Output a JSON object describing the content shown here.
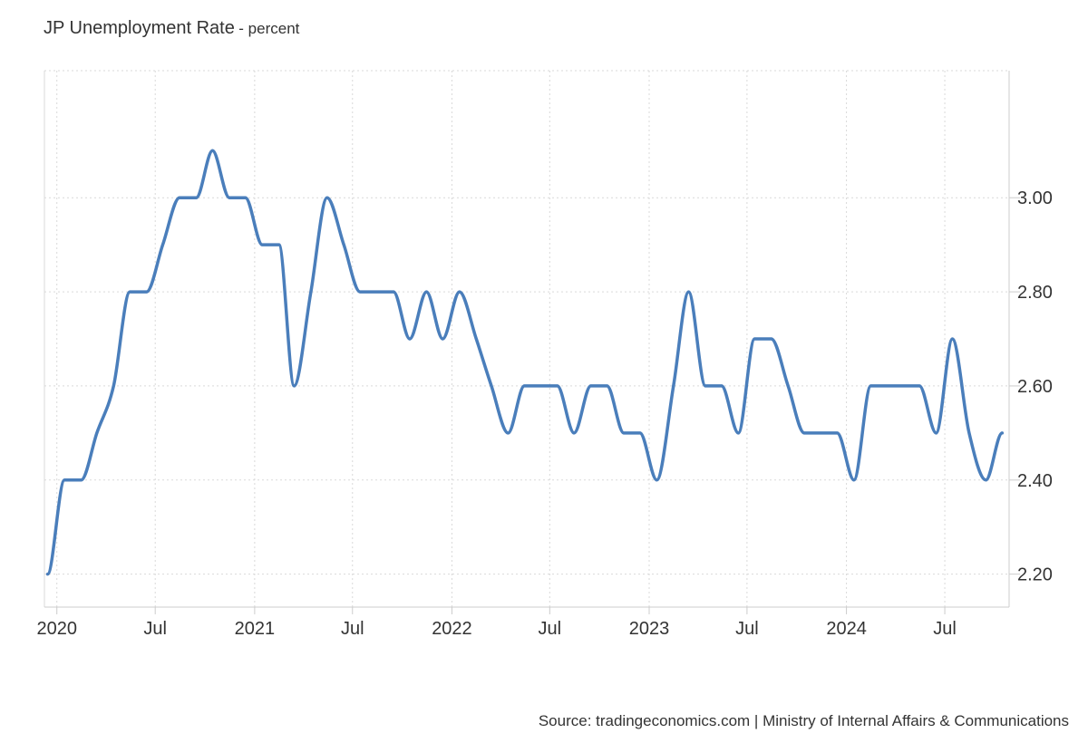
{
  "chart_data": {
    "type": "line",
    "title": "JP Unemployment Rate",
    "subtitle": "- percent",
    "xlabel": "",
    "ylabel": "",
    "ylim": [
      2.13,
      3.27
    ],
    "y_ticks": [
      2.2,
      2.4,
      2.6,
      2.8,
      3.0
    ],
    "y_tick_labels": [
      "2.20",
      "2.40",
      "2.60",
      "2.80",
      "3.00"
    ],
    "x_range": [
      "2019-12-09",
      "2024-10-28"
    ],
    "x_ticks": [
      {
        "date": "2020-01-01",
        "label": "2020"
      },
      {
        "date": "2020-07-01",
        "label": "Jul"
      },
      {
        "date": "2021-01-01",
        "label": "2021"
      },
      {
        "date": "2021-07-01",
        "label": "Jul"
      },
      {
        "date": "2022-01-01",
        "label": "2022"
      },
      {
        "date": "2022-07-01",
        "label": "Jul"
      },
      {
        "date": "2023-01-01",
        "label": "2023"
      },
      {
        "date": "2023-07-01",
        "label": "Jul"
      },
      {
        "date": "2024-01-01",
        "label": "2024"
      },
      {
        "date": "2024-07-01",
        "label": "Jul"
      }
    ],
    "grid": true,
    "color": "#4a7ebb",
    "series": [
      {
        "name": "",
        "x": [
          "2019-12-15",
          "2020-01-15",
          "2020-02-15",
          "2020-03-15",
          "2020-04-15",
          "2020-05-15",
          "2020-06-15",
          "2020-07-15",
          "2020-08-15",
          "2020-09-15",
          "2020-10-15",
          "2020-11-15",
          "2020-12-15",
          "2021-01-15",
          "2021-02-15",
          "2021-03-15",
          "2021-04-15",
          "2021-05-15",
          "2021-06-15",
          "2021-07-15",
          "2021-08-15",
          "2021-09-15",
          "2021-10-15",
          "2021-11-15",
          "2021-12-15",
          "2022-01-15",
          "2022-02-15",
          "2022-03-15",
          "2022-04-15",
          "2022-05-15",
          "2022-06-15",
          "2022-07-15",
          "2022-08-15",
          "2022-09-15",
          "2022-10-15",
          "2022-11-15",
          "2022-12-15",
          "2023-01-15",
          "2023-02-15",
          "2023-03-15",
          "2023-04-15",
          "2023-05-15",
          "2023-06-15",
          "2023-07-15",
          "2023-08-15",
          "2023-09-15",
          "2023-10-15",
          "2023-11-15",
          "2023-12-15",
          "2024-01-15",
          "2024-02-15",
          "2024-03-15",
          "2024-04-15",
          "2024-05-15",
          "2024-06-15",
          "2024-07-15",
          "2024-08-15",
          "2024-09-15",
          "2024-10-15"
        ],
        "values": [
          2.2,
          2.4,
          2.4,
          2.5,
          2.6,
          2.8,
          2.8,
          2.9,
          3.0,
          3.0,
          3.1,
          3.0,
          3.0,
          2.9,
          2.9,
          2.6,
          2.8,
          3.0,
          2.9,
          2.8,
          2.8,
          2.8,
          2.7,
          2.8,
          2.7,
          2.8,
          2.7,
          2.6,
          2.5,
          2.6,
          2.6,
          2.6,
          2.5,
          2.6,
          2.6,
          2.5,
          2.5,
          2.4,
          2.6,
          2.8,
          2.6,
          2.6,
          2.5,
          2.7,
          2.7,
          2.6,
          2.5,
          2.5,
          2.5,
          2.4,
          2.6,
          2.6,
          2.6,
          2.6,
          2.5,
          2.7,
          2.5,
          2.4,
          2.5
        ]
      }
    ]
  },
  "source": "Source: tradingeconomics.com | Ministry of Internal Affairs & Communications"
}
